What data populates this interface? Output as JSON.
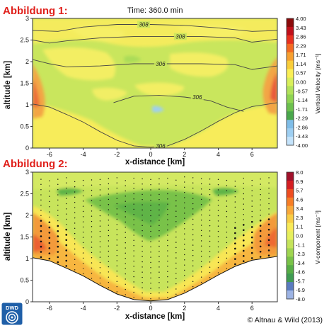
{
  "chart_data": [
    {
      "type": "heatmap",
      "figure_label": "Abbildung 1:",
      "title": "Time: 360.0 min",
      "xlabel": "x-distance [km]",
      "ylabel": "altitude [km]",
      "xlim": [
        -7,
        7.5
      ],
      "ylim": [
        0,
        3
      ],
      "xticks": [
        -6,
        -4,
        -2,
        0,
        2,
        4,
        6
      ],
      "yticks": [
        0,
        0.5,
        1,
        1.5,
        2,
        2.5,
        3
      ],
      "colorbar": {
        "title": "Vertical Velocity [ms⁻¹]",
        "ticks": [
          "4.00",
          "3.43",
          "2.86",
          "2.29",
          "1.71",
          "1.14",
          "0.57",
          "0.00",
          "-0.57",
          "-1.14",
          "-1.71",
          "-2.29",
          "-2.86",
          "-3.43",
          "-4.00"
        ],
        "colors": [
          "#8b0a0a",
          "#c0101a",
          "#e8301f",
          "#f46a22",
          "#f7a030",
          "#f9cd3a",
          "#fbef55",
          "#d9ef5a",
          "#b2e25a",
          "#8fd453",
          "#6cc04e",
          "#4aa74c",
          "#7fbde8",
          "#9ecff2",
          "#c4e3fb"
        ]
      },
      "contours": [
        {
          "label": "306",
          "points": [
            [
              -7,
              1.02
            ],
            [
              -6,
              0.95
            ],
            [
              -5,
              0.78
            ],
            [
              -4,
              0.6
            ],
            [
              -3,
              0.38
            ],
            [
              -2,
              0.18
            ],
            [
              -1,
              0.05
            ],
            [
              0,
              0.02
            ],
            [
              1,
              0.05
            ],
            [
              2,
              0.2
            ],
            [
              3,
              0.4
            ],
            [
              4,
              0.62
            ],
            [
              5,
              0.82
            ],
            [
              6,
              0.96
            ],
            [
              7,
              1.02
            ],
            [
              7.5,
              1.05
            ]
          ]
        },
        {
          "label": "306",
          "points": [
            [
              -2.2,
              1.05
            ],
            [
              -1,
              1.2
            ],
            [
              0.5,
              1.22
            ],
            [
              2,
              1.18
            ],
            [
              3.5,
              1.1
            ],
            [
              4.5,
              0.95
            ],
            [
              5.5,
              0.85
            ]
          ]
        },
        {
          "label": "306",
          "points": [
            [
              -7,
              2.05
            ],
            [
              -6,
              1.95
            ],
            [
              -5,
              1.88
            ],
            [
              -3,
              1.9
            ],
            [
              -1,
              1.95
            ],
            [
              1,
              1.95
            ],
            [
              3,
              1.95
            ],
            [
              5,
              1.93
            ],
            [
              6,
              1.82
            ],
            [
              7.5,
              1.9
            ]
          ]
        },
        {
          "label": "308",
          "points": [
            [
              -7,
              2.5
            ],
            [
              -6,
              2.43
            ],
            [
              -5,
              2.48
            ],
            [
              -3,
              2.55
            ],
            [
              -1,
              2.58
            ],
            [
              1,
              2.58
            ],
            [
              3,
              2.58
            ],
            [
              5,
              2.55
            ],
            [
              6,
              2.45
            ],
            [
              7.5,
              2.52
            ]
          ]
        },
        {
          "label": "308",
          "points": [
            [
              -7,
              2.72
            ],
            [
              -5.5,
              2.7
            ],
            [
              -4,
              2.8
            ],
            [
              -2,
              2.86
            ],
            [
              0,
              2.86
            ],
            [
              2,
              2.84
            ],
            [
              4,
              2.78
            ],
            [
              6,
              2.7
            ],
            [
              7.5,
              2.72
            ]
          ]
        }
      ]
    },
    {
      "type": "heatmap",
      "figure_label": "Abbildung 2:",
      "xlabel": "x-distance [km]",
      "ylabel": "altitude [km]",
      "xlim": [
        -7,
        7.5
      ],
      "ylim": [
        0,
        3
      ],
      "xticks": [
        -6,
        -4,
        -2,
        0,
        2,
        4,
        6
      ],
      "yticks": [
        0,
        0.5,
        1,
        1.5,
        2,
        2.5,
        3
      ],
      "colorbar": {
        "title": "V-component [ms⁻¹]",
        "ticks": [
          "8.0",
          "6.9",
          "5.7",
          "4.6",
          "3.4",
          "2.3",
          "1.1",
          "0.0",
          "-1.1",
          "-2.3",
          "-3.4",
          "-4.6",
          "-5.7",
          "-6.9",
          "-8.0"
        ],
        "colors": [
          "#a0102a",
          "#d41e22",
          "#ee4d20",
          "#f77e26",
          "#f9a93a",
          "#f8cd45",
          "#f8ea58",
          "#e6ef5c",
          "#c5e45b",
          "#9fd550",
          "#79c248",
          "#56ad46",
          "#3f9b52",
          "#5a7bbf",
          "#9cb3e4"
        ]
      }
    }
  ],
  "copyright": "© Altnau & Wild (2013)",
  "logo": {
    "text": "DWD",
    "icon": "dwd-swirl-icon"
  }
}
